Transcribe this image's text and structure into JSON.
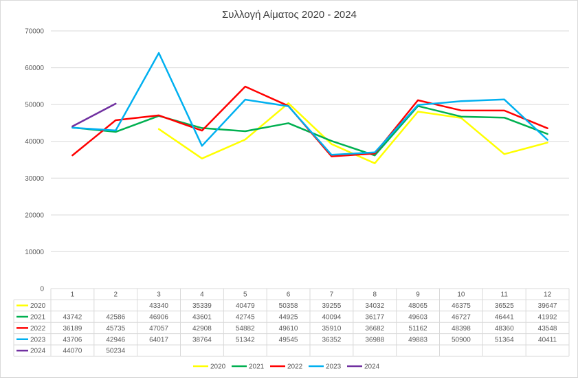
{
  "chart_data": {
    "type": "line",
    "title": "Συλλογή Αίματος 2020 - 2024",
    "xlabel": "",
    "ylabel": "",
    "ylim": [
      0,
      70000
    ],
    "yticks": [
      0,
      10000,
      20000,
      30000,
      40000,
      50000,
      60000,
      70000
    ],
    "categories": [
      "1",
      "2",
      "3",
      "4",
      "5",
      "6",
      "7",
      "8",
      "9",
      "10",
      "11",
      "12"
    ],
    "grid": true,
    "legend": "bottom",
    "data_table": true,
    "series": [
      {
        "name": "2020",
        "color": "#ffff00",
        "values": [
          null,
          null,
          43340,
          35339,
          40479,
          50358,
          39255,
          34032,
          48065,
          46375,
          36525,
          39647
        ]
      },
      {
        "name": "2021",
        "color": "#00b050",
        "values": [
          43742,
          42586,
          46906,
          43601,
          42745,
          44925,
          40094,
          36177,
          49603,
          46727,
          46441,
          41992
        ]
      },
      {
        "name": "2022",
        "color": "#ff0000",
        "values": [
          36189,
          45735,
          47057,
          42908,
          54882,
          49610,
          35910,
          36682,
          51162,
          48398,
          48360,
          43548
        ]
      },
      {
        "name": "2023",
        "color": "#00b0f0",
        "values": [
          43706,
          42946,
          64017,
          38764,
          51342,
          49545,
          36352,
          36988,
          49883,
          50900,
          51364,
          40411
        ]
      },
      {
        "name": "2024",
        "color": "#7030a0",
        "values": [
          44070,
          50234,
          null,
          null,
          null,
          null,
          null,
          null,
          null,
          null,
          null,
          null
        ]
      }
    ]
  }
}
